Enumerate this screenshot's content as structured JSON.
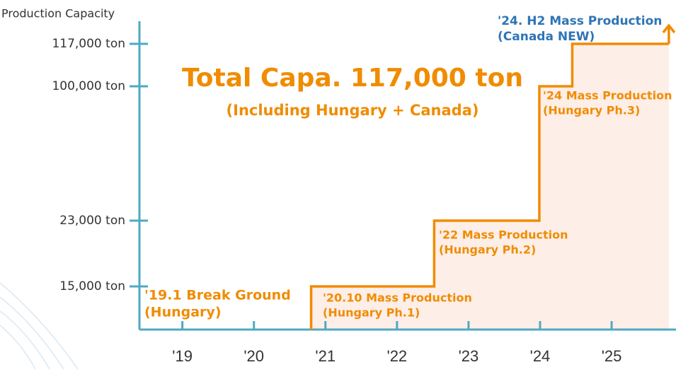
{
  "chart_data": {
    "type": "step",
    "title": "Total Capa. 117,000 ton",
    "subtitle": "(Including Hungary + Canada)",
    "y_label": "Production Capacity",
    "color": "#f08c00",
    "area_color": "#fdeee8",
    "axis_color": "#4fa9c2",
    "x": [
      2020.8,
      2020.8,
      2022.52,
      2022.52,
      2023.99,
      2023.99,
      2024.45,
      2024.45,
      2025.8
    ],
    "values": [
      0,
      15000,
      15000,
      23000,
      23000,
      100000,
      100000,
      117000,
      117000
    ],
    "xlim": [
      2018.4,
      2025.9
    ],
    "xticks": [
      {
        "value": 2019,
        "label": "'19"
      },
      {
        "value": 2020,
        "label": "'20"
      },
      {
        "value": 2021,
        "label": "'21"
      },
      {
        "value": 2022,
        "label": "'22"
      },
      {
        "value": 2023,
        "label": "'23"
      },
      {
        "value": 2024,
        "label": "'24"
      },
      {
        "value": 2025,
        "label": "'25"
      }
    ],
    "ylim": [
      0,
      117000
    ],
    "yticks": [
      {
        "value": 15000,
        "label": "15,000 ton"
      },
      {
        "value": 23000,
        "label": "23,000 ton"
      },
      {
        "value": 100000,
        "label": "100,000 ton"
      },
      {
        "value": 117000,
        "label": "117,000 ton"
      }
    ],
    "annotations": [
      {
        "lines": [
          "'19.1 Break Ground",
          "(Hungary)"
        ],
        "color": "#f08c00"
      },
      {
        "lines": [
          "'20.10 Mass Production",
          "(Hungary Ph.1)"
        ],
        "color": "#f08c00"
      },
      {
        "lines": [
          "'22 Mass Production",
          "(Hungary Ph.2)"
        ],
        "color": "#f08c00"
      },
      {
        "lines": [
          "'24 Mass Production",
          "(Hungary Ph.3)"
        ],
        "color": "#f08c00"
      },
      {
        "lines": [
          "'24. H2 Mass Production",
          "(Canada NEW)"
        ],
        "color": "#2e75b6"
      }
    ]
  }
}
